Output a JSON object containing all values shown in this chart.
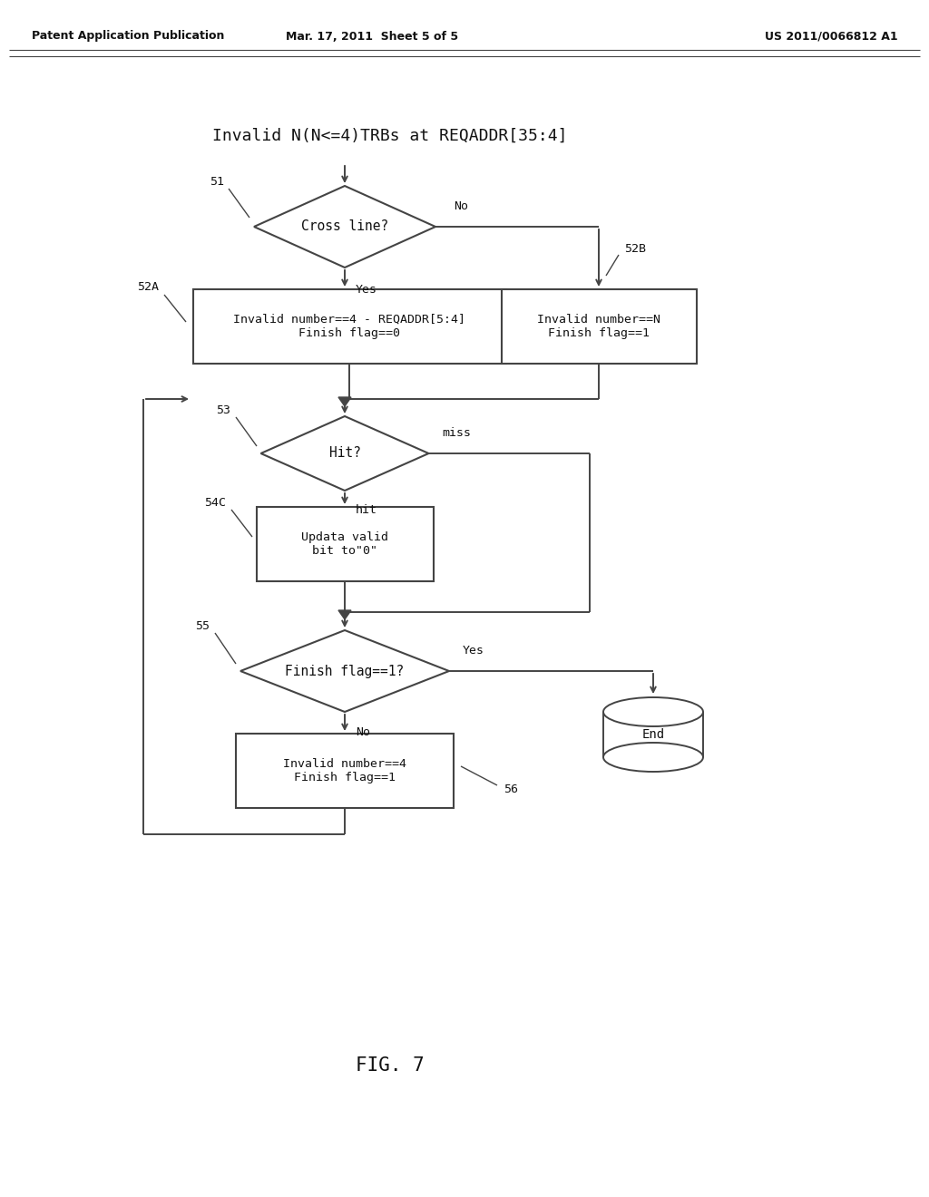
{
  "header_left": "Patent Application Publication",
  "header_mid": "Mar. 17, 2011  Sheet 5 of 5",
  "header_right": "US 2011/0066812 A1",
  "fig_label": "FIG. 7",
  "title": "Invalid N(N<=4)TRBs at REQADDR[35:4]",
  "n51_label": "Cross line?",
  "n51_id": "51",
  "n52A_label": "Invalid number==4 - REQADDR[5:4]\nFinish flag==0",
  "n52A_id": "52A",
  "n52B_label": "Invalid number==N\nFinish flag==1",
  "n52B_id": "52B",
  "n53_label": "Hit?",
  "n53_id": "53",
  "n54C_label": "Updata valid\nbit to\"0\"",
  "n54C_id": "54C",
  "n55_label": "Finish flag==1?",
  "n55_id": "55",
  "n56_label": "Invalid number==4\nFinish flag==1",
  "n56_id": "56",
  "end_label": "End",
  "lc": "#444444",
  "tc": "#111111",
  "bg": "#ffffff"
}
